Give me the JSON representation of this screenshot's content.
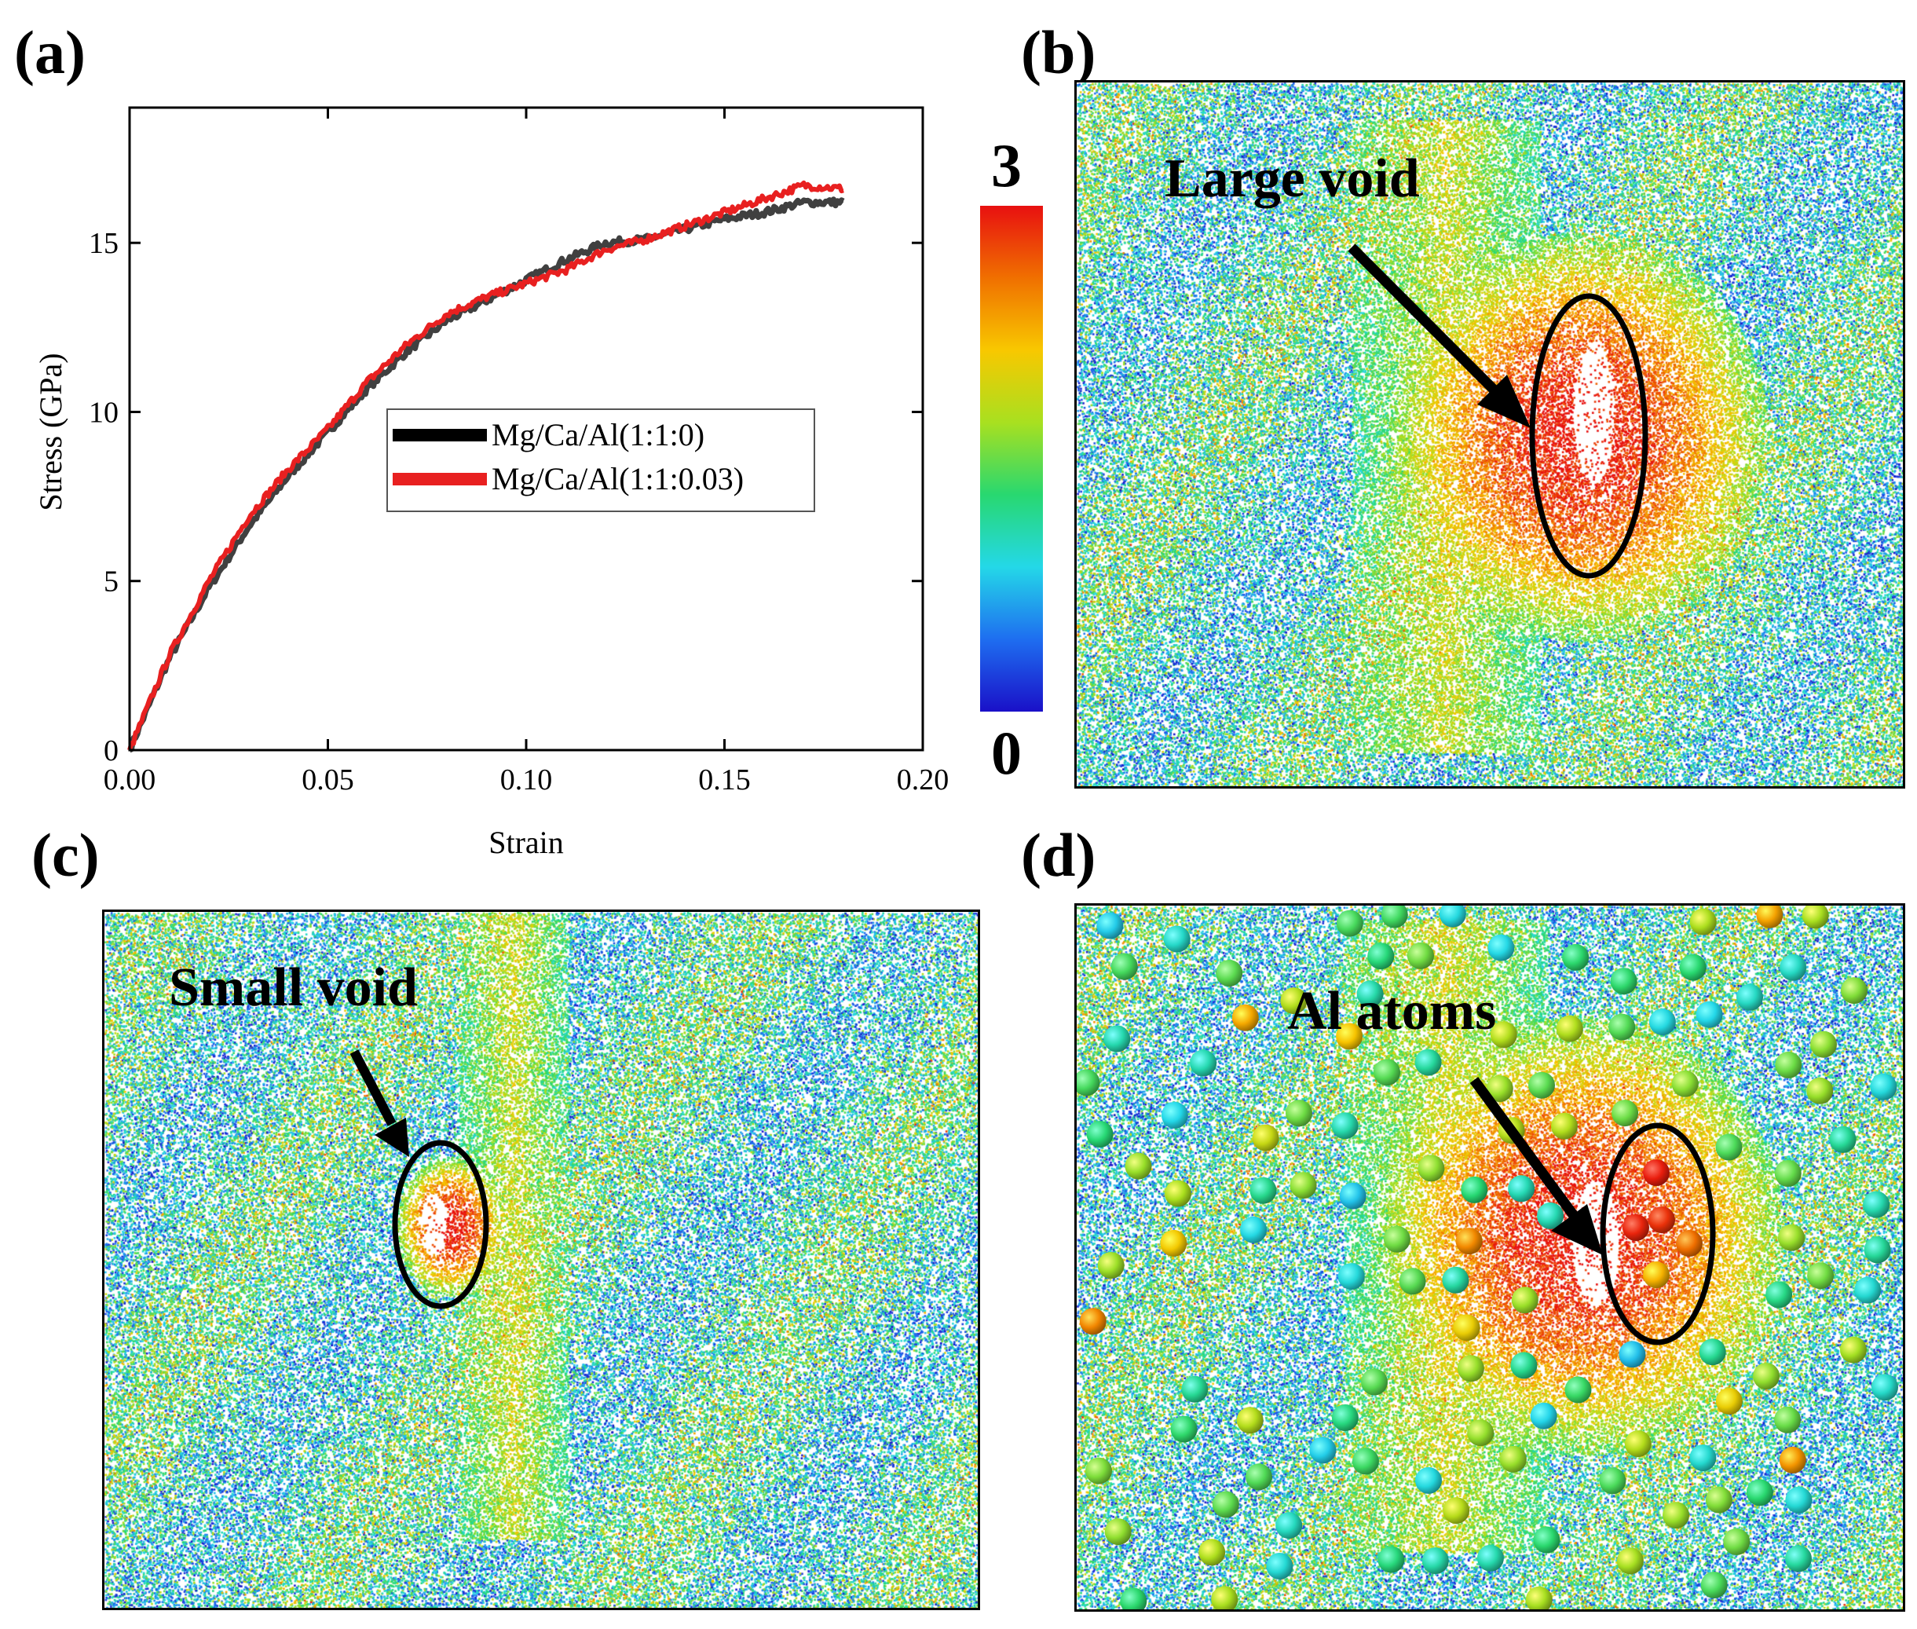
{
  "panels": {
    "a": {
      "label": "(a)"
    },
    "b": {
      "label": "(b)",
      "annotation": "Large void"
    },
    "c": {
      "label": "(c)",
      "annotation": "Small void"
    },
    "d": {
      "label": "(d)",
      "annotation": "Al atoms"
    }
  },
  "colorbar": {
    "max_label": "3",
    "min_label": "0",
    "stops": [
      "#1a10c8",
      "#1e6ef0",
      "#24d8e8",
      "#28d870",
      "#a8e020",
      "#f8c800",
      "#f07000",
      "#e81010"
    ]
  },
  "chart_data": {
    "type": "line",
    "xlabel": "Strain",
    "ylabel": "Stress (GPa)",
    "xlim": [
      0.0,
      0.2
    ],
    "ylim": [
      0,
      19
    ],
    "xticks": [
      0.0,
      0.05,
      0.1,
      0.15,
      0.2
    ],
    "xtick_labels": [
      "0.00",
      "0.05",
      "0.10",
      "0.15",
      "0.20"
    ],
    "yticks": [
      0,
      5,
      10,
      15
    ],
    "ytick_labels": [
      "0",
      "5",
      "10",
      "15"
    ],
    "grid": false,
    "legend_position": "center-right",
    "series": [
      {
        "name": "Mg/Ca/Al(1:1:0)",
        "color": "#404040",
        "x": [
          0.0,
          0.01,
          0.02,
          0.03,
          0.04,
          0.05,
          0.06,
          0.07,
          0.08,
          0.09,
          0.1,
          0.11,
          0.12,
          0.13,
          0.14,
          0.15,
          0.16,
          0.17,
          0.18
        ],
        "y": [
          0.0,
          2.7,
          4.8,
          6.6,
          8.1,
          9.4,
          10.7,
          11.8,
          12.7,
          13.3,
          13.9,
          14.5,
          15.0,
          15.1,
          15.4,
          15.7,
          15.9,
          16.2,
          16.2
        ]
      },
      {
        "name": "Mg/Ca/Al(1:1:0.03)",
        "color": "#e82020",
        "x": [
          0.0,
          0.01,
          0.02,
          0.03,
          0.04,
          0.05,
          0.06,
          0.07,
          0.08,
          0.09,
          0.1,
          0.11,
          0.12,
          0.13,
          0.14,
          0.15,
          0.16,
          0.17,
          0.18
        ],
        "y": [
          0.0,
          2.8,
          5.0,
          6.9,
          8.3,
          9.5,
          10.9,
          12.0,
          12.9,
          13.4,
          13.8,
          14.2,
          14.8,
          15.1,
          15.5,
          15.9,
          16.3,
          16.7,
          16.6
        ]
      }
    ]
  }
}
